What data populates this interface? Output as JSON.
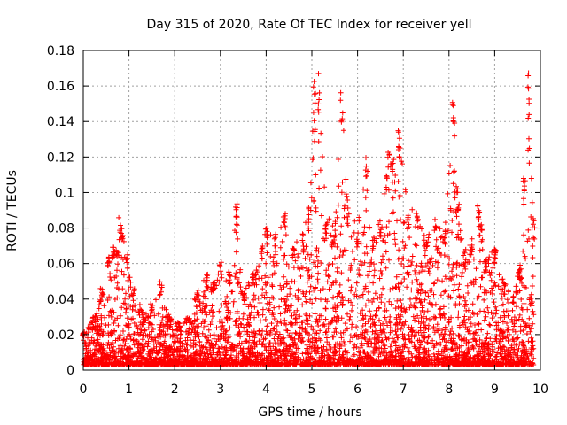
{
  "chart_data": {
    "type": "scatter",
    "title": "Day 315 of 2020, Rate Of TEC Index for receiver yell",
    "xlabel": "GPS time / hours",
    "ylabel": "ROTI / TECUs",
    "xlim": [
      0,
      10
    ],
    "ylim": [
      0,
      0.18
    ],
    "xticks": [
      0,
      1,
      2,
      3,
      4,
      5,
      6,
      7,
      8,
      9,
      10
    ],
    "yticks": [
      0,
      0.02,
      0.04,
      0.06,
      0.08,
      0.1,
      0.12,
      0.14,
      0.16,
      0.18
    ],
    "xtick_labels": [
      "0",
      "1",
      "2",
      "3",
      "4",
      "5",
      "6",
      "7",
      "8",
      "9",
      "10"
    ],
    "ytick_labels": [
      "0",
      "0.02",
      "0.04",
      "0.06",
      "0.08",
      "0.1",
      "0.12",
      "0.14",
      "0.16",
      "0.18"
    ],
    "grid": true,
    "legend": "none",
    "marker": "+",
    "color": "#ff0000",
    "series": [
      {
        "name": "ROTI",
        "envelope_description": "upper envelope of the dense plus-marker cloud (hours, TECU/min); points fill from ~0.003 up to this envelope",
        "x": [
          0.0,
          0.2,
          0.4,
          0.55,
          0.65,
          0.75,
          0.8,
          0.85,
          0.95,
          1.1,
          1.3,
          1.5,
          1.7,
          1.9,
          2.1,
          2.3,
          2.5,
          2.7,
          2.85,
          3.0,
          3.2,
          3.35,
          3.5,
          3.7,
          3.9,
          4.0,
          4.2,
          4.4,
          4.6,
          4.8,
          4.95,
          5.05,
          5.15,
          5.3,
          5.5,
          5.65,
          5.8,
          6.0,
          6.2,
          6.35,
          6.5,
          6.65,
          6.75,
          6.9,
          7.1,
          7.3,
          7.5,
          7.7,
          7.9,
          8.1,
          8.2,
          8.35,
          8.5,
          8.65,
          8.8,
          9.0,
          9.2,
          9.4,
          9.55,
          9.65,
          9.75,
          9.85
        ],
        "y": [
          0.022,
          0.03,
          0.046,
          0.065,
          0.072,
          0.068,
          0.086,
          0.08,
          0.065,
          0.046,
          0.033,
          0.038,
          0.05,
          0.03,
          0.027,
          0.03,
          0.047,
          0.054,
          0.05,
          0.062,
          0.057,
          0.094,
          0.044,
          0.055,
          0.07,
          0.081,
          0.077,
          0.09,
          0.07,
          0.078,
          0.092,
          0.165,
          0.168,
          0.09,
          0.08,
          0.162,
          0.095,
          0.08,
          0.121,
          0.078,
          0.085,
          0.127,
          0.12,
          0.137,
          0.09,
          0.092,
          0.072,
          0.09,
          0.08,
          0.156,
          0.103,
          0.068,
          0.075,
          0.098,
          0.062,
          0.07,
          0.05,
          0.042,
          0.06,
          0.11,
          0.168,
          0.086
        ]
      }
    ]
  }
}
